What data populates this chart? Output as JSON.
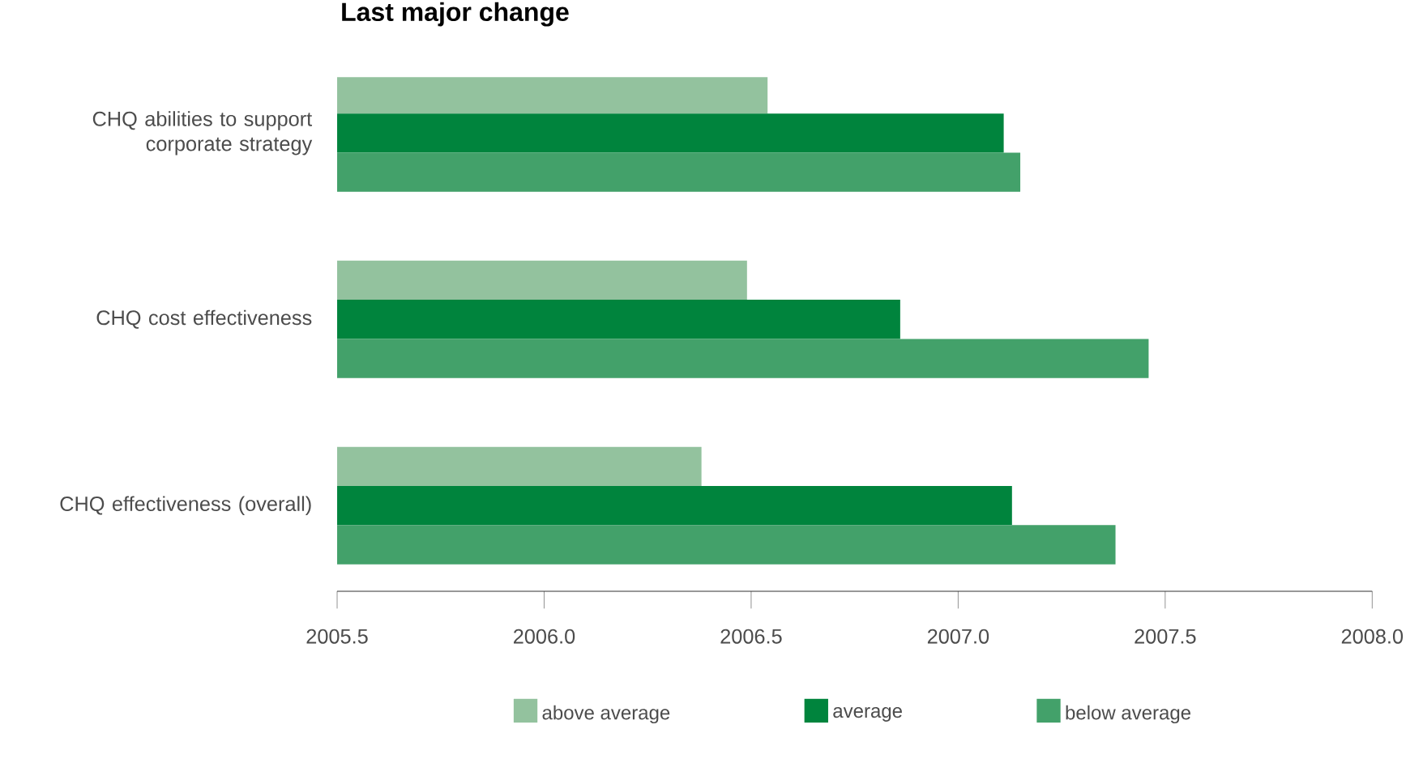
{
  "chart_data": {
    "type": "bar",
    "orientation": "horizontal",
    "title": "Last major change",
    "categories": [
      "CHQ abilities to support corporate strategy",
      "CHQ cost effectiveness",
      "CHQ effectiveness (overall)"
    ],
    "series": [
      {
        "name": "above average",
        "color": "#93c29e",
        "values": [
          2006.54,
          2006.49,
          2006.38
        ]
      },
      {
        "name": "average",
        "color": "#00843d",
        "values": [
          2007.11,
          2006.86,
          2007.13
        ]
      },
      {
        "name": "below average",
        "color": "#43a16a",
        "values": [
          2007.15,
          2007.46,
          2007.38
        ]
      }
    ],
    "xlim": [
      2005.5,
      2008.0
    ],
    "xticks": [
      {
        "value": 2005.5,
        "label": "2005.5"
      },
      {
        "value": 2006.0,
        "label": "2006.0"
      },
      {
        "value": 2006.5,
        "label": "2006.5"
      },
      {
        "value": 2007.0,
        "label": "2007.0"
      },
      {
        "value": 2007.5,
        "label": "2007.5"
      },
      {
        "value": 2008.0,
        "label": "2008.0"
      }
    ],
    "legend": "bottom"
  }
}
